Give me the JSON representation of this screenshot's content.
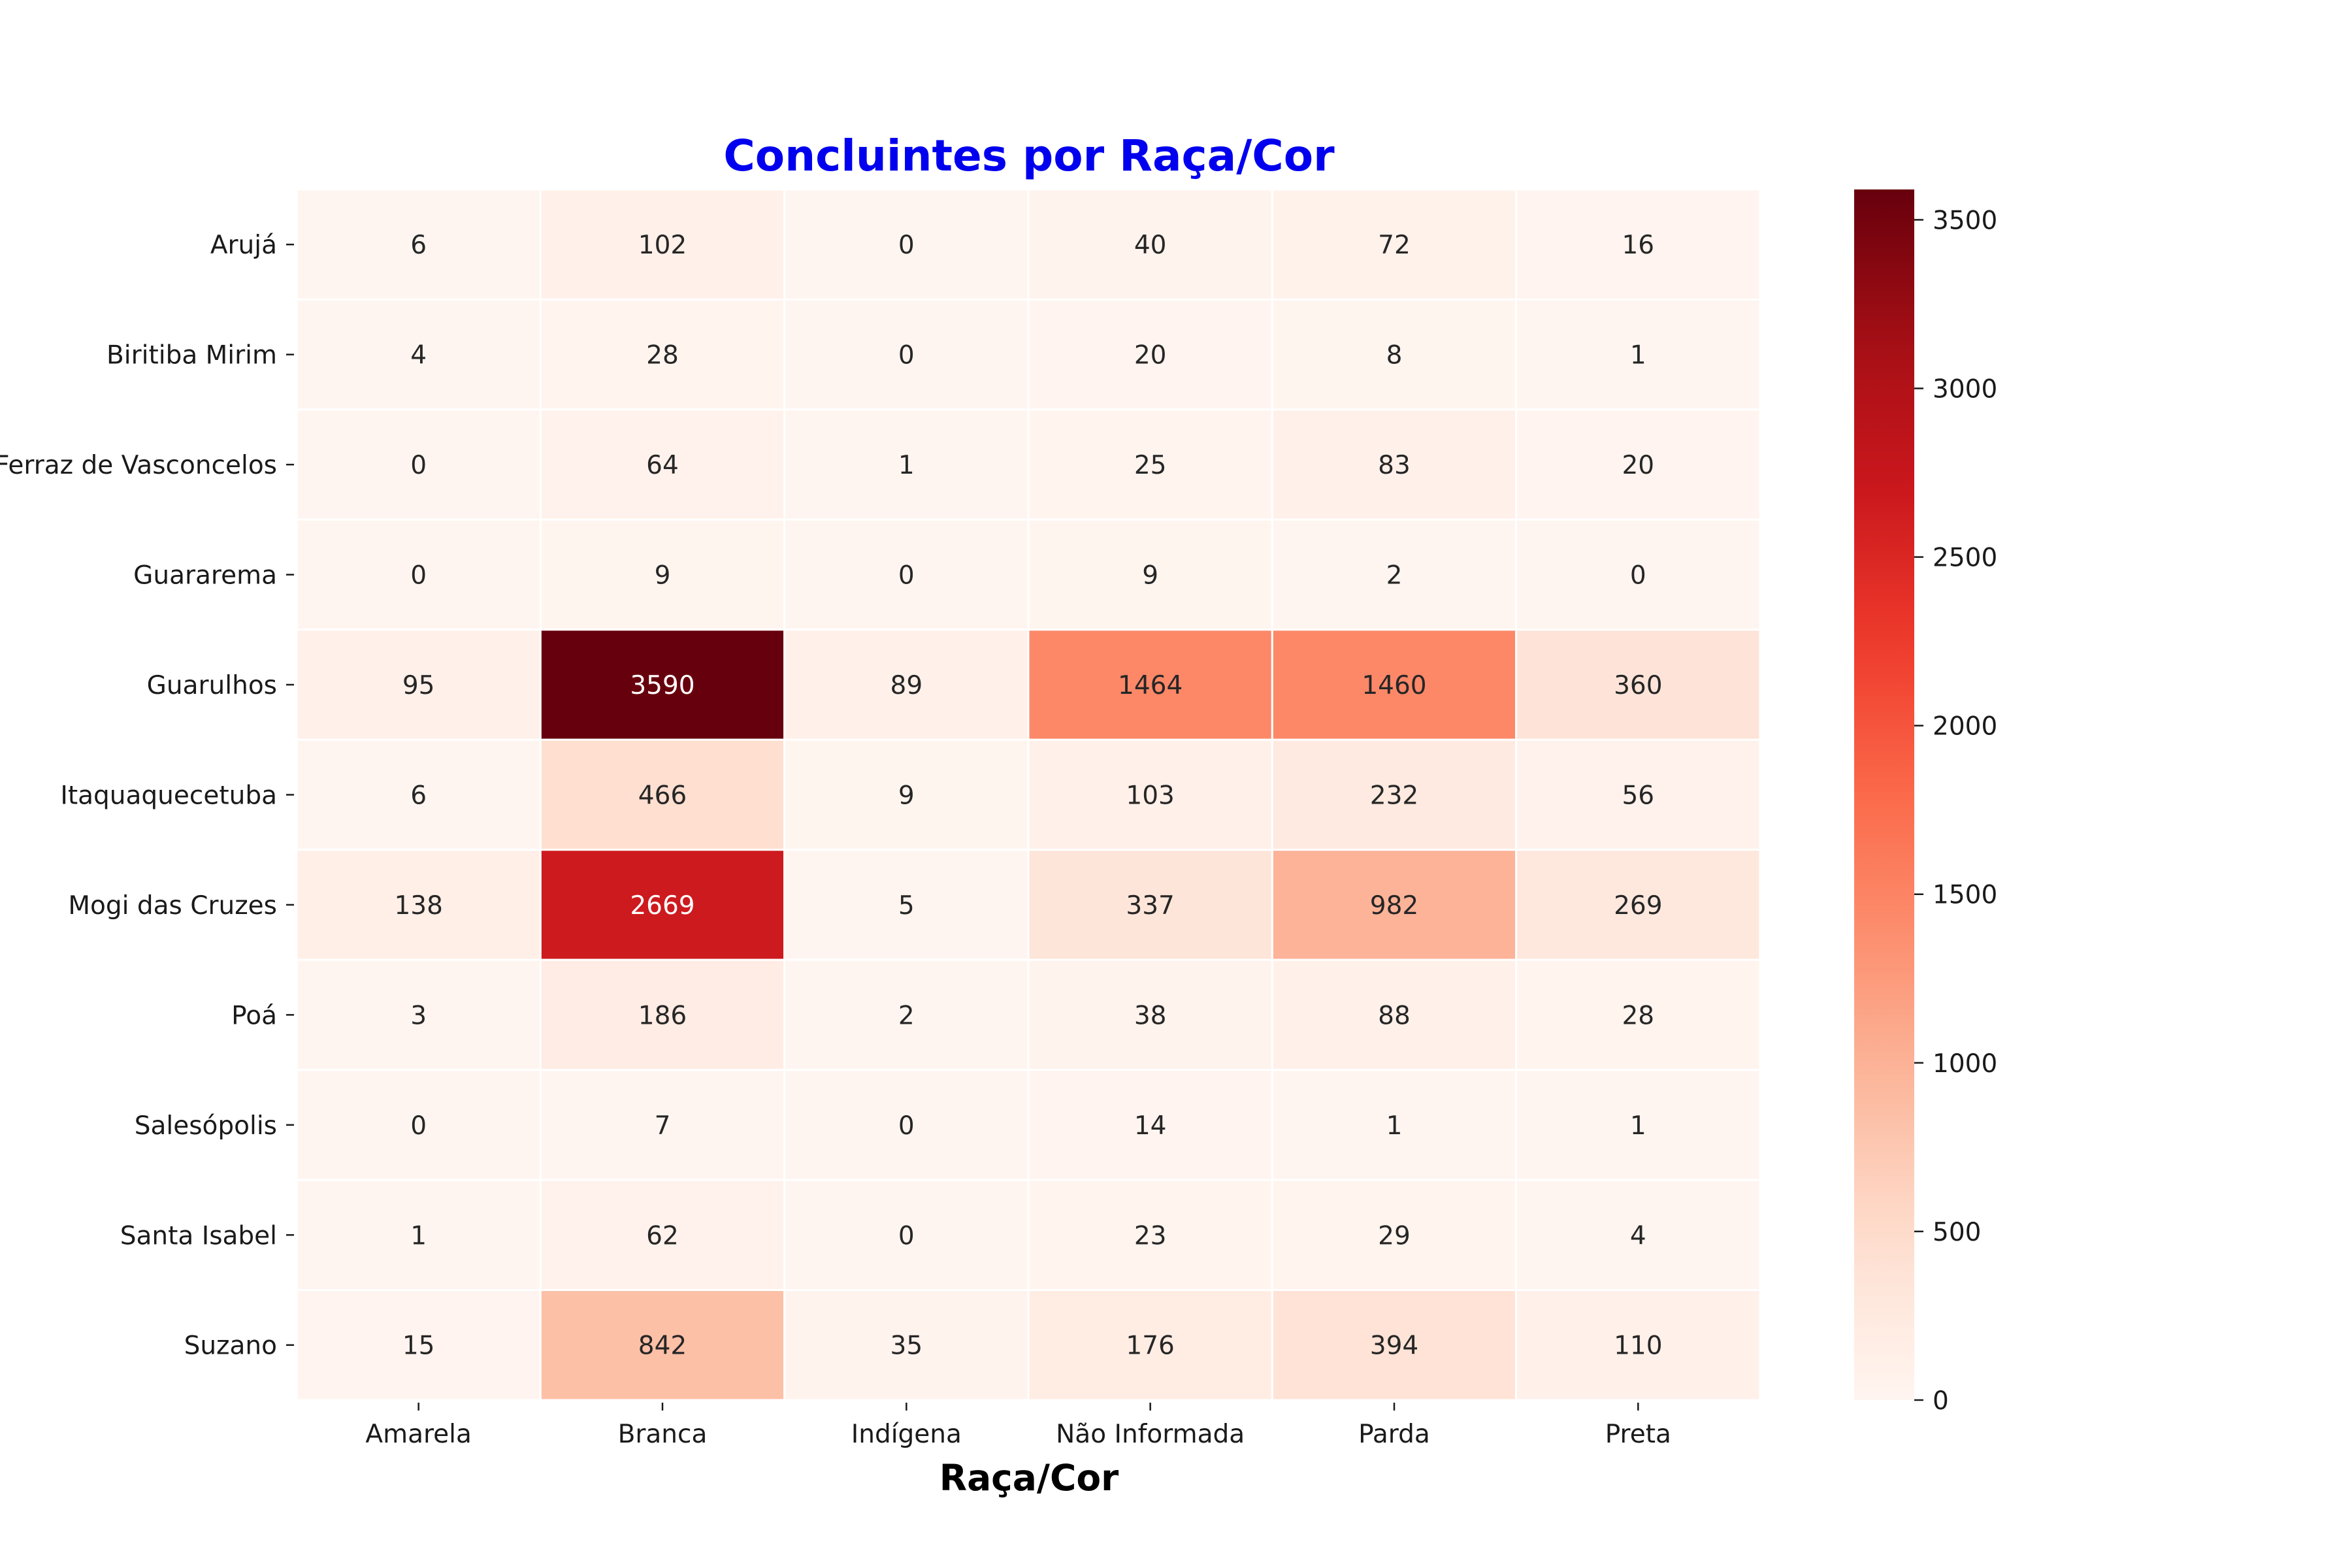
{
  "chart_data": {
    "type": "heatmap",
    "title": "Concluintes por Raça/Cor",
    "title_color": "#0000ee",
    "xlabel": "Raça/Cor",
    "ylabel": "",
    "colormap": "Reds",
    "colorbar": {
      "min": 0,
      "max": 3590,
      "ticks": [
        0,
        500,
        1000,
        1500,
        2000,
        2500,
        3000,
        3500
      ]
    },
    "columns": [
      "Amarela",
      "Branca",
      "Indígena",
      "Não Informada",
      "Parda",
      "Preta"
    ],
    "rows": [
      "Arujá",
      "Biritiba Mirim",
      "Ferraz de Vasconcelos",
      "Guararema",
      "Guarulhos",
      "Itaquaquecetuba",
      "Mogi das Cruzes",
      "Poá",
      "Salesópolis",
      "Santa Isabel",
      "Suzano"
    ],
    "values": [
      [
        6,
        102,
        0,
        40,
        72,
        16
      ],
      [
        4,
        28,
        0,
        20,
        8,
        1
      ],
      [
        0,
        64,
        1,
        25,
        83,
        20
      ],
      [
        0,
        9,
        0,
        9,
        2,
        0
      ],
      [
        95,
        3590,
        89,
        1464,
        1460,
        360
      ],
      [
        6,
        466,
        9,
        103,
        232,
        56
      ],
      [
        138,
        2669,
        5,
        337,
        982,
        269
      ],
      [
        3,
        186,
        2,
        38,
        88,
        28
      ],
      [
        0,
        7,
        0,
        14,
        1,
        1
      ],
      [
        1,
        62,
        0,
        23,
        29,
        4
      ],
      [
        15,
        842,
        35,
        176,
        394,
        110
      ]
    ]
  }
}
